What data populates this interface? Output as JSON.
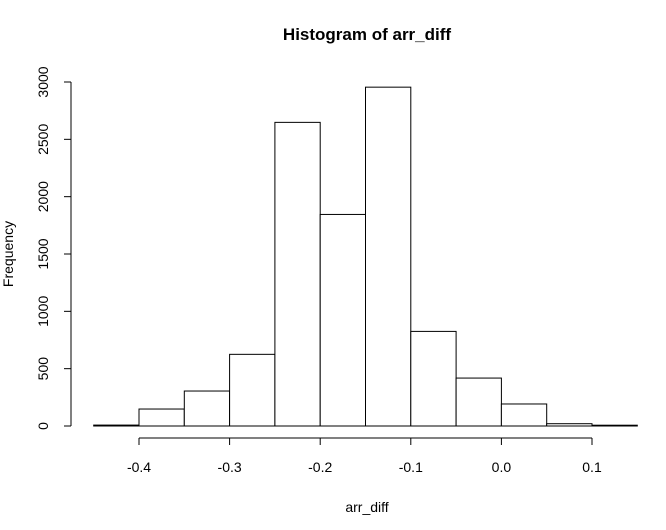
{
  "chart_data": {
    "type": "bar",
    "title": "Histogram of arr_diff",
    "xlabel": "arr_diff",
    "ylabel": "Frequency",
    "bins": [
      {
        "start": -0.45,
        "end": -0.4,
        "count": 8
      },
      {
        "start": -0.4,
        "end": -0.35,
        "count": 148
      },
      {
        "start": -0.35,
        "end": -0.3,
        "count": 305
      },
      {
        "start": -0.3,
        "end": -0.25,
        "count": 625
      },
      {
        "start": -0.25,
        "end": -0.2,
        "count": 2648
      },
      {
        "start": -0.2,
        "end": -0.15,
        "count": 1845
      },
      {
        "start": -0.15,
        "end": -0.1,
        "count": 2955
      },
      {
        "start": -0.1,
        "end": -0.05,
        "count": 825
      },
      {
        "start": -0.05,
        "end": 0.0,
        "count": 418
      },
      {
        "start": 0.0,
        "end": 0.05,
        "count": 192
      },
      {
        "start": 0.05,
        "end": 0.1,
        "count": 20
      },
      {
        "start": 0.1,
        "end": 0.15,
        "count": 7
      }
    ],
    "xlim": [
      -0.45,
      0.15
    ],
    "ylim": [
      0,
      3000
    ],
    "x_ticks": [
      -0.4,
      -0.3,
      -0.2,
      -0.1,
      0.0,
      0.1
    ],
    "x_tick_labels": [
      "-0.4",
      "-0.3",
      "-0.2",
      "-0.1",
      "0.0",
      "0.1"
    ],
    "y_ticks": [
      0,
      500,
      1000,
      1500,
      2000,
      2500,
      3000
    ],
    "y_tick_labels": [
      "0",
      "500",
      "1000",
      "1500",
      "2000",
      "2500",
      "3000"
    ],
    "grid": false,
    "legend": "none"
  }
}
